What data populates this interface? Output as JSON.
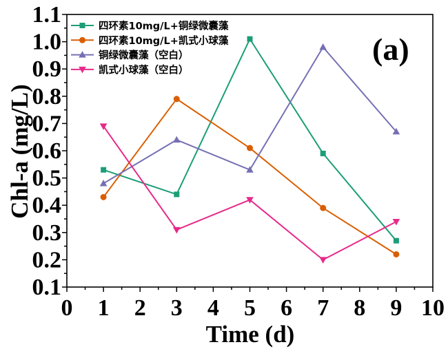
{
  "chart_data": {
    "type": "line",
    "xlabel": "Time (d)",
    "ylabel": "Chl-a (mg/L)",
    "annotation": "(a)",
    "xlim": [
      0,
      10
    ],
    "ylim": [
      0.1,
      1.1
    ],
    "xticks": [
      "0",
      "1",
      "2",
      "3",
      "4",
      "5",
      "6",
      "7",
      "8",
      "9",
      "10"
    ],
    "yticks": [
      "0.1",
      "0.2",
      "0.3",
      "0.4",
      "0.5",
      "0.6",
      "0.7",
      "0.8",
      "0.9",
      "1.0",
      "1.1"
    ],
    "grid": false,
    "legend_position": "top-left",
    "x": [
      1,
      3,
      5,
      7,
      9
    ],
    "series": [
      {
        "name": "四环素10mg/L+铜绿微囊藻",
        "values": [
          0.53,
          0.44,
          1.01,
          0.59,
          0.27
        ],
        "color": "#1b9e77",
        "marker": "square"
      },
      {
        "name": "四环素10mg/L+凯式小球藻",
        "values": [
          0.43,
          0.79,
          0.61,
          0.39,
          0.22
        ],
        "color": "#d95f02",
        "marker": "circle"
      },
      {
        "name": "铜绿微囊藻（空白）",
        "values": [
          0.48,
          0.64,
          0.53,
          0.98,
          0.67
        ],
        "color": "#7570b3",
        "marker": "triangle-up"
      },
      {
        "name": "凯式小球藻（空白）",
        "values": [
          0.69,
          0.31,
          0.42,
          0.2,
          0.34
        ],
        "color": "#e7298a",
        "marker": "triangle-down"
      }
    ]
  }
}
